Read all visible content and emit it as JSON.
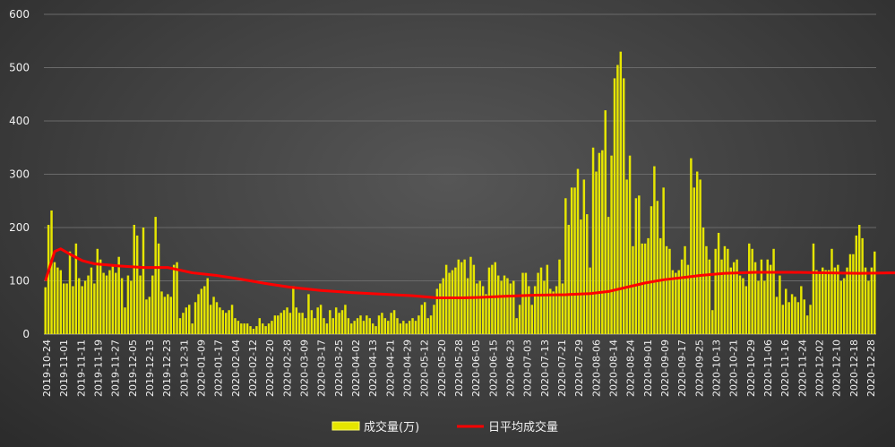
{
  "chart_data": {
    "type": "bar",
    "title": "",
    "xlabel": "",
    "ylabel": "",
    "ylim": [
      0,
      600
    ],
    "yticks": [
      "0",
      "100",
      "200",
      "300",
      "400",
      "500",
      "600"
    ],
    "grid": true,
    "legend_position": "bottom",
    "x_tick_labels": [
      "2019-10-24",
      "2019-11-01",
      "2019-11-11",
      "2019-11-19",
      "2019-11-27",
      "2019-12-05",
      "2019-12-13",
      "2019-12-23",
      "2019-12-31",
      "2020-01-09",
      "2020-01-17",
      "2020-02-04",
      "2020-02-12",
      "2020-02-20",
      "2020-02-28",
      "2020-03-09",
      "2020-03-17",
      "2020-03-25",
      "2020-04-02",
      "2020-04-13",
      "2020-04-21",
      "2020-04-29",
      "2020-05-12",
      "2020-05-20",
      "2020-05-28",
      "2020-06-05",
      "2020-06-15",
      "2020-06-23",
      "2020-07-03",
      "2020-07-13",
      "2020-07-21",
      "2020-07-29",
      "2020-08-06",
      "2020-08-14",
      "2020-08-24",
      "2020-09-01",
      "2020-09-09",
      "2020-09-17",
      "2020-09-25",
      "2020-10-13",
      "2020-10-21",
      "2020-10-29",
      "2020-11-06",
      "2020-11-16",
      "2020-11-24",
      "2020-12-02",
      "2020-12-10",
      "2020-12-18",
      "2020-12-28"
    ],
    "series": [
      {
        "name": "成交量(万)",
        "type": "bar",
        "color": "#e6e600",
        "values": [
          88,
          205,
          232,
          135,
          125,
          120,
          95,
          95,
          155,
          90,
          170,
          105,
          90,
          100,
          110,
          125,
          95,
          160,
          140,
          115,
          110,
          120,
          130,
          115,
          145,
          105,
          50,
          110,
          100,
          205,
          185,
          110,
          200,
          65,
          70,
          110,
          220,
          170,
          80,
          70,
          75,
          70,
          130,
          135,
          30,
          40,
          50,
          55,
          20,
          60,
          75,
          85,
          90,
          105,
          55,
          70,
          60,
          50,
          45,
          40,
          45,
          55,
          30,
          25,
          20,
          20,
          20,
          15,
          10,
          15,
          30,
          20,
          15,
          20,
          25,
          35,
          35,
          40,
          45,
          50,
          40,
          90,
          50,
          40,
          40,
          30,
          75,
          45,
          30,
          50,
          55,
          30,
          20,
          45,
          30,
          50,
          40,
          45,
          55,
          30,
          20,
          25,
          30,
          35,
          25,
          35,
          30,
          20,
          15,
          35,
          40,
          30,
          25,
          40,
          45,
          30,
          20,
          25,
          20,
          25,
          30,
          25,
          35,
          55,
          60,
          30,
          35,
          55,
          85,
          95,
          105,
          130,
          115,
          120,
          125,
          140,
          135,
          140,
          105,
          145,
          130,
          95,
          100,
          90,
          75,
          125,
          130,
          135,
          110,
          100,
          110,
          105,
          95,
          100,
          30,
          55,
          115,
          115,
          90,
          55,
          90,
          115,
          125,
          100,
          130,
          85,
          80,
          90,
          140,
          95,
          255,
          205,
          275,
          275,
          310,
          215,
          290,
          225,
          125,
          350,
          305,
          340,
          345,
          420,
          220,
          335,
          480,
          505,
          530,
          480,
          290,
          335,
          165,
          255,
          260,
          170,
          170,
          180,
          240,
          315,
          250,
          180,
          275,
          165,
          160,
          120,
          115,
          120,
          140,
          165,
          130,
          330,
          275,
          305,
          290,
          200,
          165,
          140,
          45,
          160,
          190,
          140,
          165,
          160,
          125,
          135,
          140,
          110,
          105,
          90,
          170,
          160,
          135,
          100,
          140,
          100,
          140,
          130,
          160,
          70,
          110,
          55,
          85,
          60,
          75,
          70,
          60,
          90,
          65,
          35,
          55,
          170,
          120,
          115,
          125,
          120,
          120,
          160,
          125,
          130,
          100,
          105,
          125,
          150,
          150,
          185,
          205,
          180,
          125,
          100,
          125,
          155
        ]
      },
      {
        "name": "日平均成交量",
        "type": "line",
        "color": "#ff0000",
        "points": [
          [
            0,
            100
          ],
          [
            3,
            155
          ],
          [
            5,
            160
          ],
          [
            8,
            150
          ],
          [
            12,
            138
          ],
          [
            16,
            132
          ],
          [
            24,
            128
          ],
          [
            32,
            125
          ],
          [
            40,
            125
          ],
          [
            48,
            115
          ],
          [
            56,
            110
          ],
          [
            64,
            103
          ],
          [
            72,
            95
          ],
          [
            80,
            88
          ],
          [
            90,
            82
          ],
          [
            100,
            78
          ],
          [
            110,
            75
          ],
          [
            120,
            72
          ],
          [
            128,
            68
          ],
          [
            136,
            68
          ],
          [
            142,
            69
          ],
          [
            150,
            71
          ],
          [
            160,
            73
          ],
          [
            170,
            74
          ],
          [
            178,
            76
          ],
          [
            184,
            80
          ],
          [
            190,
            88
          ],
          [
            196,
            96
          ],
          [
            202,
            102
          ],
          [
            208,
            106
          ],
          [
            214,
            110
          ],
          [
            222,
            114
          ],
          [
            232,
            116
          ],
          [
            244,
            116
          ],
          [
            256,
            115
          ],
          [
            266,
            114
          ],
          [
            276,
            115
          ],
          [
            281,
            115
          ]
        ]
      }
    ]
  }
}
